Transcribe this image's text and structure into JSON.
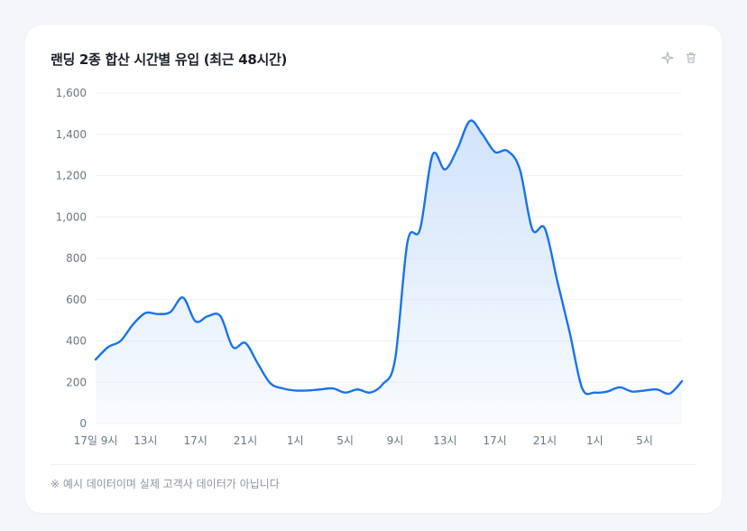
{
  "card": {
    "title": "랜딩 2종 합산 시간별 유입 (최근 48시간)",
    "footnote": "※ 예시 데이터이며 실제 고객사 데이터가 아닙니다",
    "actions": [
      {
        "name": "sparkle-icon"
      },
      {
        "name": "trash-icon"
      }
    ]
  },
  "colors": {
    "line": "#1a73e8",
    "area_top": "#cfe2fb",
    "grid": "#eef1f4",
    "axis_text": "#6b7684"
  },
  "chart_data": {
    "type": "area",
    "title": "랜딩 2종 합산 시간별 유입 (최근 48시간)",
    "xlabel": "",
    "ylabel": "",
    "ylim": [
      0,
      1600
    ],
    "yticks": [
      0,
      200,
      400,
      600,
      800,
      1000,
      1200,
      1400,
      1600
    ],
    "ytick_labels": [
      "0",
      "200",
      "400",
      "600",
      "800",
      "1,000",
      "1,200",
      "1,400",
      "1,600"
    ],
    "xtick_labels": [
      {
        "hour": 0,
        "label": "17일 9시"
      },
      {
        "hour": 4,
        "label": "13시"
      },
      {
        "hour": 8,
        "label": "17시"
      },
      {
        "hour": 12,
        "label": "21시"
      },
      {
        "hour": 16,
        "label": "1시"
      },
      {
        "hour": 20,
        "label": "5시"
      },
      {
        "hour": 24,
        "label": "9시"
      },
      {
        "hour": 28,
        "label": "13시"
      },
      {
        "hour": 32,
        "label": "17시"
      },
      {
        "hour": 36,
        "label": "21시"
      },
      {
        "hour": 40,
        "label": "1시"
      },
      {
        "hour": 44,
        "label": "5시"
      }
    ],
    "grid": true,
    "legend": "none",
    "series": [
      {
        "hours": [
          0,
          1,
          2,
          3,
          4,
          5,
          6,
          7,
          8,
          9,
          10,
          11,
          12,
          13,
          14,
          15,
          16,
          17,
          18,
          19,
          20,
          21,
          22,
          23,
          24,
          25,
          26,
          27,
          28,
          29,
          30,
          31,
          32,
          33,
          34,
          35,
          36,
          37,
          38,
          39,
          40,
          41,
          42,
          43,
          44,
          45,
          46,
          47
        ],
        "values": [
          310,
          370,
          400,
          480,
          535,
          530,
          540,
          610,
          495,
          520,
          520,
          370,
          390,
          290,
          195,
          170,
          160,
          160,
          165,
          170,
          150,
          165,
          150,
          190,
          310,
          880,
          940,
          1300,
          1230,
          1330,
          1465,
          1400,
          1315,
          1320,
          1230,
          940,
          945,
          690,
          440,
          170,
          150,
          155,
          175,
          155,
          160,
          165,
          145,
          205
        ]
      }
    ]
  }
}
